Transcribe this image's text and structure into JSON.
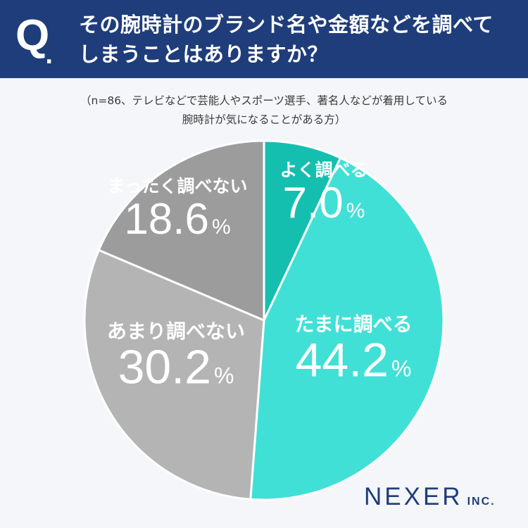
{
  "header": {
    "q_mark": "Q",
    "q_dot": ".",
    "question_line1": "その腕時計のブランド名や金額などを調べて",
    "question_line2": "しまうことはありますか？"
  },
  "note": {
    "line1": "（n=86、テレビなどで芸能人やスポーツ選手、著名人などが着用している",
    "line2": "腕時計が気になることがある方）"
  },
  "chart_data": {
    "type": "pie",
    "slices": [
      {
        "label": "よく調べる",
        "value": 7.0,
        "display": "7.0",
        "color": "#14bfb0"
      },
      {
        "label": "たまに調べる",
        "value": 44.2,
        "display": "44.2",
        "color": "#41e0d6"
      },
      {
        "label": "あまり調べない",
        "value": 30.2,
        "display": "30.2",
        "color": "#b4b4b4"
      },
      {
        "label": "まったく調べない",
        "value": 18.6,
        "display": "18.6",
        "color": "#9c9c9c"
      }
    ],
    "unit": "%",
    "start": "12 o'clock, clockwise"
  },
  "logo": {
    "main": "NEXER",
    "sub": "INC."
  }
}
